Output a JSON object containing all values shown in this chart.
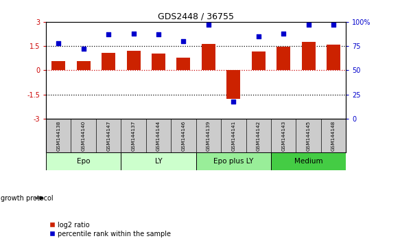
{
  "title": "GDS2448 / 36755",
  "samples": [
    "GSM144138",
    "GSM144140",
    "GSM144147",
    "GSM144137",
    "GSM144144",
    "GSM144146",
    "GSM144139",
    "GSM144141",
    "GSM144142",
    "GSM144143",
    "GSM144145",
    "GSM144148"
  ],
  "log2_ratio": [
    0.55,
    0.55,
    1.1,
    1.2,
    1.05,
    0.8,
    1.65,
    -1.75,
    1.15,
    1.45,
    1.75,
    1.6
  ],
  "percentile_rank": [
    78,
    72,
    87,
    88,
    87,
    80,
    97,
    18,
    85,
    88,
    97,
    97
  ],
  "groups": [
    {
      "label": "Epo",
      "start": 0,
      "end": 3,
      "color": "#ccffcc"
    },
    {
      "label": "LY",
      "start": 3,
      "end": 6,
      "color": "#ccffcc"
    },
    {
      "label": "Epo plus LY",
      "start": 6,
      "end": 9,
      "color": "#99ee99"
    },
    {
      "label": "Medium",
      "start": 9,
      "end": 12,
      "color": "#44cc44"
    }
  ],
  "ylim_left": [
    -3,
    3
  ],
  "ylim_right": [
    0,
    100
  ],
  "bar_color": "#cc2200",
  "dot_color": "#0000cc",
  "hline_color_red": "#cc0000",
  "hline_color_black": "#000000",
  "group_label": "growth protocol",
  "legend_bar": "log2 ratio",
  "legend_dot": "percentile rank within the sample",
  "background_color": "#ffffff",
  "sample_bg_color": "#cccccc",
  "yticks_left": [
    -3,
    -1.5,
    0,
    1.5,
    3
  ],
  "yticks_right": [
    0,
    25,
    50,
    75,
    100
  ],
  "dotted_lines_black": [
    -1.5,
    1.5
  ],
  "dotted_line_red": 0
}
